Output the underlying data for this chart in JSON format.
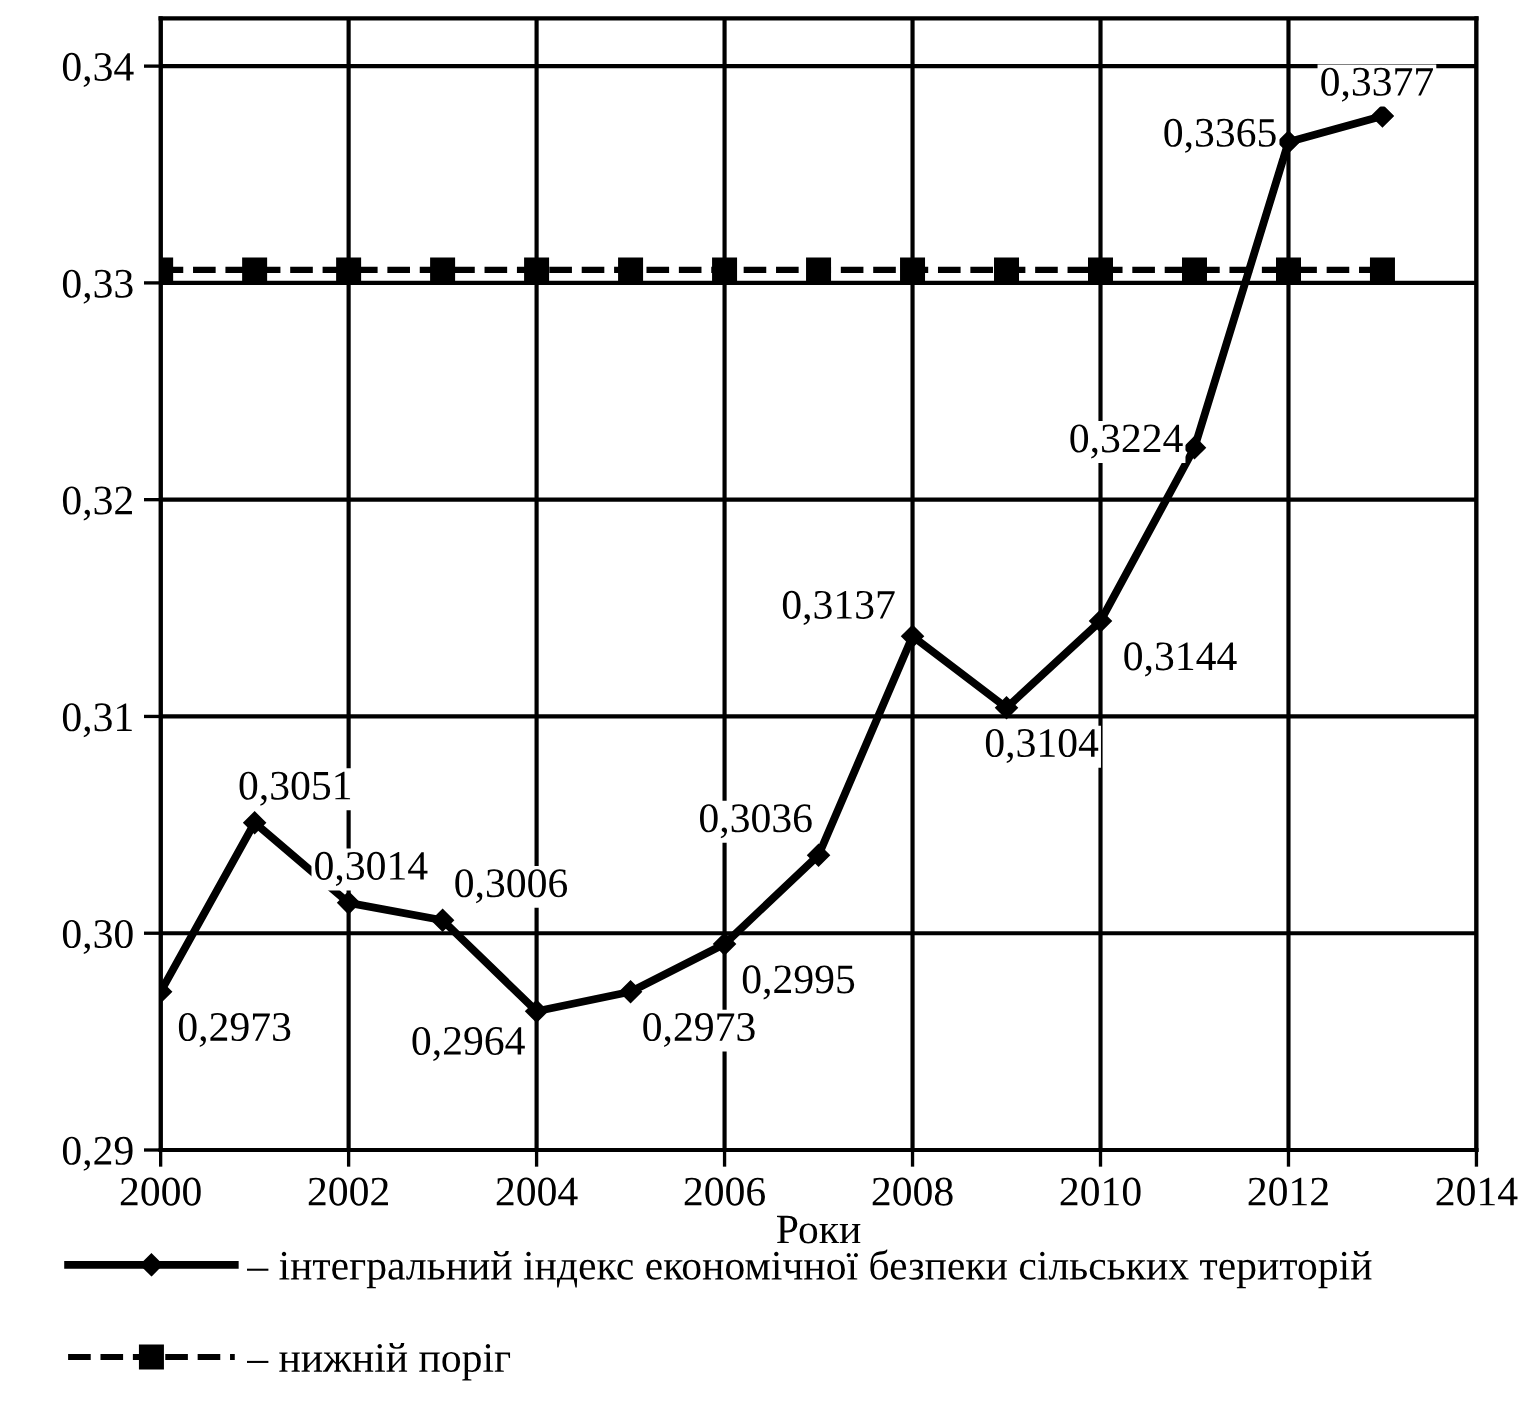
{
  "chart_data": {
    "type": "line",
    "xlabel": "Роки",
    "x": [
      2000,
      2001,
      2002,
      2003,
      2004,
      2005,
      2006,
      2007,
      2008,
      2009,
      2010,
      2011,
      2012,
      2013
    ],
    "series": [
      {
        "name": "– інтегральний індекс економічної безпеки сільських територій",
        "color": "#000000",
        "marker": "diamond",
        "line_style": "solid",
        "values": [
          0.2973,
          0.3051,
          0.3014,
          0.3006,
          0.2964,
          0.2973,
          0.2995,
          0.3036,
          0.3137,
          0.3104,
          0.3144,
          0.3224,
          0.3365,
          0.3377
        ],
        "value_labels": [
          "0,2973",
          "0,3051",
          "0,3014",
          "0,3006",
          "0,2964",
          "0,2973",
          "0,2995",
          "0,3036",
          "0,3137",
          "0,3104",
          "0,3144",
          "0,3224",
          "0,3365",
          "0,3377"
        ]
      },
      {
        "name": "– нижній поріг",
        "color": "#000000",
        "marker": "square",
        "line_style": "dashed",
        "values": [
          0.3306,
          0.3306,
          0.3306,
          0.3306,
          0.3306,
          0.3306,
          0.3306,
          0.3306,
          0.3306,
          0.3306,
          0.3306,
          0.3306,
          0.3306,
          0.3306
        ]
      }
    ],
    "xlim": [
      2000,
      2014
    ],
    "xticks": [
      2000,
      2002,
      2004,
      2006,
      2008,
      2010,
      2012,
      2014
    ],
    "ylim": [
      0.29,
      0.3422
    ],
    "yticks": [
      {
        "value": 0.29,
        "label": "0,29"
      },
      {
        "value": 0.3,
        "label": "0,30"
      },
      {
        "value": 0.31,
        "label": "0,31"
      },
      {
        "value": 0.32,
        "label": "0,32"
      },
      {
        "value": 0.33,
        "label": "0,33"
      },
      {
        "value": 0.34,
        "label": "0,34"
      }
    ],
    "grid": true,
    "legend": "bottom"
  }
}
